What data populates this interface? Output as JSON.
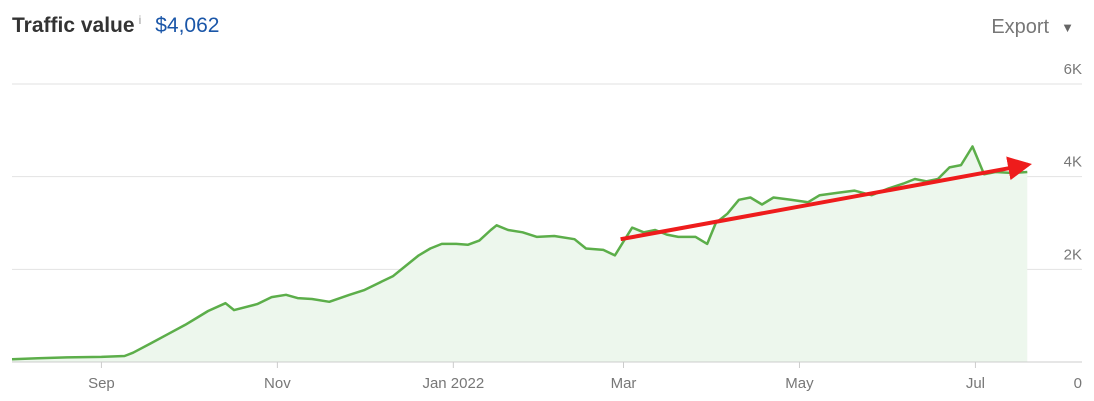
{
  "header": {
    "title": "Traffic value",
    "info": "i",
    "value": "$4,062",
    "export_label": "Export",
    "export_icon": "caret-down-icon"
  },
  "colors": {
    "line": "#5cae4a",
    "fill": "#edf7ed",
    "grid": "#e2e2e2",
    "arrow": "#ee1c1c",
    "value": "#1a56a8"
  },
  "chart_data": {
    "type": "area",
    "title": "Traffic value",
    "xlabel": "",
    "ylabel": "",
    "ylim": [
      0,
      6000
    ],
    "yticks": [
      {
        "value": 0,
        "label": "0"
      },
      {
        "value": 2000,
        "label": "2K"
      },
      {
        "value": 4000,
        "label": "4K"
      },
      {
        "value": 6000,
        "label": "6K"
      }
    ],
    "xlim": [
      "2021-08-01",
      "2022-07-22"
    ],
    "xticks": [
      {
        "date": "2021-09-01",
        "label": "Sep"
      },
      {
        "date": "2021-11-01",
        "label": "Nov"
      },
      {
        "date": "2022-01-01",
        "label": "Jan 2022"
      },
      {
        "date": "2022-03-01",
        "label": "Mar"
      },
      {
        "date": "2022-05-01",
        "label": "May"
      },
      {
        "date": "2022-07-01",
        "label": "Jul"
      }
    ],
    "grid": true,
    "series": [
      {
        "values": [
          [
            "2021-08-01",
            60
          ],
          [
            "2021-08-10",
            80
          ],
          [
            "2021-08-20",
            100
          ],
          [
            "2021-09-01",
            110
          ],
          [
            "2021-09-09",
            130
          ],
          [
            "2021-09-12",
            200
          ],
          [
            "2021-09-18",
            400
          ],
          [
            "2021-09-24",
            600
          ],
          [
            "2021-09-30",
            800
          ],
          [
            "2021-10-04",
            950
          ],
          [
            "2021-10-08",
            1100
          ],
          [
            "2021-10-14",
            1270
          ],
          [
            "2021-10-17",
            1120
          ],
          [
            "2021-10-25",
            1250
          ],
          [
            "2021-10-30",
            1400
          ],
          [
            "2021-11-04",
            1450
          ],
          [
            "2021-11-08",
            1380
          ],
          [
            "2021-11-13",
            1360
          ],
          [
            "2021-11-19",
            1300
          ],
          [
            "2021-11-26",
            1450
          ],
          [
            "2021-12-01",
            1550
          ],
          [
            "2021-12-06",
            1700
          ],
          [
            "2021-12-11",
            1850
          ],
          [
            "2021-12-15",
            2050
          ],
          [
            "2021-12-20",
            2300
          ],
          [
            "2021-12-24",
            2450
          ],
          [
            "2021-12-28",
            2550
          ],
          [
            "2022-01-02",
            2550
          ],
          [
            "2022-01-06",
            2530
          ],
          [
            "2022-01-10",
            2620
          ],
          [
            "2022-01-14",
            2850
          ],
          [
            "2022-01-16",
            2950
          ],
          [
            "2022-01-20",
            2850
          ],
          [
            "2022-01-25",
            2800
          ],
          [
            "2022-01-30",
            2700
          ],
          [
            "2022-02-05",
            2720
          ],
          [
            "2022-02-12",
            2650
          ],
          [
            "2022-02-16",
            2450
          ],
          [
            "2022-02-22",
            2420
          ],
          [
            "2022-02-26",
            2300
          ],
          [
            "2022-03-01",
            2600
          ],
          [
            "2022-03-04",
            2900
          ],
          [
            "2022-03-08",
            2800
          ],
          [
            "2022-03-12",
            2850
          ],
          [
            "2022-03-16",
            2750
          ],
          [
            "2022-03-20",
            2700
          ],
          [
            "2022-03-26",
            2700
          ],
          [
            "2022-03-30",
            2550
          ],
          [
            "2022-04-02",
            3000
          ],
          [
            "2022-04-06",
            3200
          ],
          [
            "2022-04-10",
            3500
          ],
          [
            "2022-04-14",
            3550
          ],
          [
            "2022-04-18",
            3400
          ],
          [
            "2022-04-22",
            3550
          ],
          [
            "2022-04-28",
            3500
          ],
          [
            "2022-05-04",
            3450
          ],
          [
            "2022-05-08",
            3600
          ],
          [
            "2022-05-14",
            3650
          ],
          [
            "2022-05-20",
            3700
          ],
          [
            "2022-05-26",
            3600
          ],
          [
            "2022-06-01",
            3750
          ],
          [
            "2022-06-06",
            3850
          ],
          [
            "2022-06-10",
            3950
          ],
          [
            "2022-06-14",
            3900
          ],
          [
            "2022-06-18",
            3950
          ],
          [
            "2022-06-22",
            4200
          ],
          [
            "2022-06-26",
            4250
          ],
          [
            "2022-06-30",
            4650
          ],
          [
            "2022-07-04",
            4050
          ],
          [
            "2022-07-08",
            4100
          ],
          [
            "2022-07-14",
            4080
          ],
          [
            "2022-07-19",
            4100
          ]
        ]
      }
    ],
    "annotations": [
      {
        "type": "arrow",
        "from": [
          "2022-02-28",
          2650
        ],
        "to": [
          "2022-07-22",
          4300
        ]
      }
    ]
  }
}
